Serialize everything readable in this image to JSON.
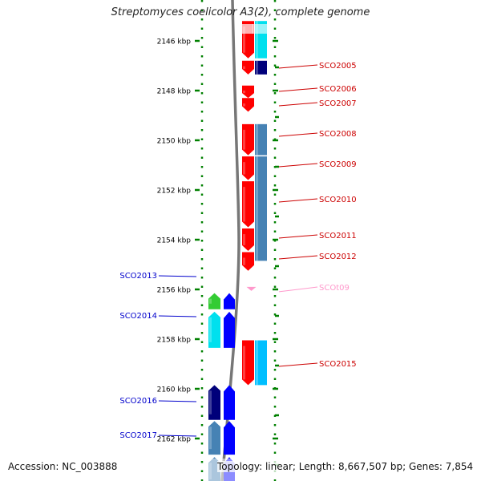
{
  "title": "Streptomyces coelicolor A3(2), complete genome",
  "accession_text": "Accession: NC_003888",
  "topology_text": "Topology: linear; Length: 8,667,507 bp; Genes: 7,854",
  "ruler": {
    "start_kbp": 2145.2,
    "end_kbp": 2163.9,
    "label_unit": "kbp",
    "labels_kbp": [
      2146,
      2148,
      2150,
      2152,
      2154,
      2156,
      2158,
      2160,
      2162
    ]
  },
  "colors": {
    "red": "#ff0000",
    "cyan": "#00e0ee",
    "navy": "#00007a",
    "steelblue": "#4682b4",
    "blue": "#0000ff",
    "green": "#33cc33",
    "sky": "#00bfff",
    "pink": "#ff99cc",
    "ruler_green": "#008000",
    "backbone": "#777777",
    "label_red": "#cc0000",
    "label_blue": "#0000cc"
  },
  "features": [
    {
      "track": "fwd_gene",
      "strand": 1,
      "start_kbp": 2145.2,
      "end_kbp": 2146.7,
      "color": "red"
    },
    {
      "track": "fwd_cds",
      "strand": 1,
      "start_kbp": 2145.2,
      "end_kbp": 2146.7,
      "color": "cyan"
    },
    {
      "track": "fwd_gene",
      "strand": 1,
      "start_kbp": 2146.8,
      "end_kbp": 2147.35,
      "color": "red",
      "label": "SCO2005"
    },
    {
      "track": "fwd_cds",
      "strand": 1,
      "start_kbp": 2146.8,
      "end_kbp": 2147.35,
      "color": "navy"
    },
    {
      "track": "fwd_gene",
      "strand": 1,
      "start_kbp": 2147.8,
      "end_kbp": 2148.3,
      "color": "red",
      "label": "SCO2006"
    },
    {
      "track": "fwd_gene",
      "strand": 1,
      "start_kbp": 2148.3,
      "end_kbp": 2148.85,
      "color": "red",
      "label": "SCO2007"
    },
    {
      "track": "fwd_gene",
      "strand": 1,
      "start_kbp": 2149.35,
      "end_kbp": 2150.6,
      "color": "red",
      "label": "SCO2008"
    },
    {
      "track": "fwd_cds",
      "strand": 1,
      "start_kbp": 2149.35,
      "end_kbp": 2150.6,
      "color": "steelblue"
    },
    {
      "track": "fwd_gene",
      "strand": 1,
      "start_kbp": 2150.65,
      "end_kbp": 2151.6,
      "color": "red",
      "label": "SCO2009"
    },
    {
      "track": "fwd_cds",
      "strand": 1,
      "start_kbp": 2150.65,
      "end_kbp": 2154.85,
      "color": "steelblue"
    },
    {
      "track": "fwd_gene",
      "strand": 1,
      "start_kbp": 2151.65,
      "end_kbp": 2153.5,
      "color": "red",
      "label": "SCO2010"
    },
    {
      "track": "fwd_gene",
      "strand": 1,
      "start_kbp": 2153.55,
      "end_kbp": 2154.45,
      "color": "red",
      "label": "SCO2011"
    },
    {
      "track": "fwd_gene",
      "strand": 1,
      "start_kbp": 2154.5,
      "end_kbp": 2155.25,
      "color": "red",
      "label": "SCO2012"
    },
    {
      "track": "rev_gene",
      "strand": -1,
      "start_kbp": 2156.15,
      "end_kbp": 2156.8,
      "color": "green",
      "label": "SCO2013"
    },
    {
      "track": "rev_cds",
      "strand": -1,
      "start_kbp": 2156.15,
      "end_kbp": 2156.8,
      "color": "blue"
    },
    {
      "track": "fwd_gene",
      "strand": 1,
      "start_kbp": 2155.9,
      "end_kbp": 2156.05,
      "color": "pink",
      "label": "SCOt09",
      "label_color": "pink"
    },
    {
      "track": "rev_gene",
      "strand": -1,
      "start_kbp": 2156.9,
      "end_kbp": 2158.35,
      "color": "cyan",
      "label": "SCO2014"
    },
    {
      "track": "rev_cds",
      "strand": -1,
      "start_kbp": 2156.9,
      "end_kbp": 2158.35,
      "color": "blue"
    },
    {
      "track": "fwd_gene",
      "strand": 1,
      "start_kbp": 2158.05,
      "end_kbp": 2159.85,
      "color": "red",
      "label": "SCO2015"
    },
    {
      "track": "fwd_cds",
      "strand": 1,
      "start_kbp": 2158.05,
      "end_kbp": 2159.85,
      "color": "sky"
    },
    {
      "track": "rev_gene",
      "strand": -1,
      "start_kbp": 2159.85,
      "end_kbp": 2161.25,
      "color": "navy",
      "label": "SCO2016"
    },
    {
      "track": "rev_cds",
      "strand": -1,
      "start_kbp": 2159.85,
      "end_kbp": 2161.25,
      "color": "blue"
    },
    {
      "track": "rev_gene",
      "strand": -1,
      "start_kbp": 2161.3,
      "end_kbp": 2162.65,
      "color": "steelblue",
      "label": "SCO2017"
    },
    {
      "track": "rev_cds",
      "strand": -1,
      "start_kbp": 2161.3,
      "end_kbp": 2162.65,
      "color": "blue"
    },
    {
      "track": "rev_gene",
      "strand": -1,
      "start_kbp": 2162.75,
      "end_kbp": 2163.9,
      "color": "steelblue"
    },
    {
      "track": "rev_cds",
      "strand": -1,
      "start_kbp": 2162.75,
      "end_kbp": 2163.9,
      "color": "blue"
    }
  ]
}
